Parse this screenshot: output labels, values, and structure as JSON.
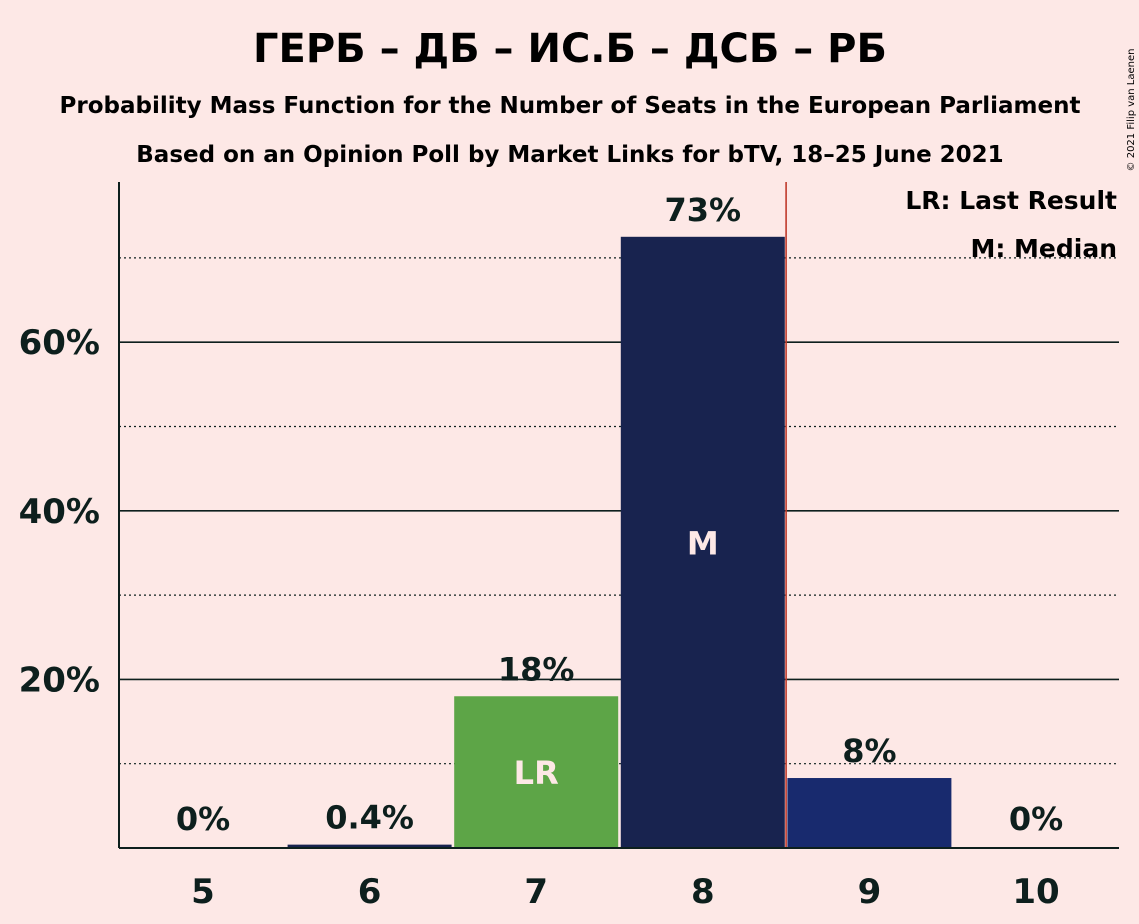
{
  "chart_data": {
    "type": "bar",
    "title": "ГЕРБ – ДБ – ИС.Б – ДСБ – РБ",
    "subtitle_1": "Probability Mass Function for the Number of Seats in the European Parliament",
    "subtitle_2": "Based on an Opinion Poll by Market Links for bTV, 18–25 June 2021",
    "categories": [
      "5",
      "6",
      "7",
      "8",
      "9",
      "10"
    ],
    "values": [
      0,
      0.4,
      18,
      72.5,
      8.3,
      0
    ],
    "value_labels": [
      "0%",
      "0.4%",
      "18%",
      "73%",
      "8%",
      "0%"
    ],
    "bar_colors": [
      "#18234F",
      "#18234F",
      "#5DA547",
      "#18234F",
      "#182A6E",
      "#18234F"
    ],
    "bar_marks": [
      "",
      "",
      "LR",
      "M",
      "",
      ""
    ],
    "ylim": [
      0,
      79
    ],
    "yticks": [
      20,
      40,
      60
    ],
    "ytick_labels": [
      "20%",
      "40%",
      "60%"
    ],
    "minor_gridlines": [
      10,
      30,
      50,
      70
    ],
    "last_result_line_after": "8",
    "last_result_line_color": "#C0392B",
    "legend": [
      "LR: Last Result",
      "M: Median"
    ],
    "legend_position": "top-right",
    "copyright": "© 2021 Filip van Laenen"
  }
}
